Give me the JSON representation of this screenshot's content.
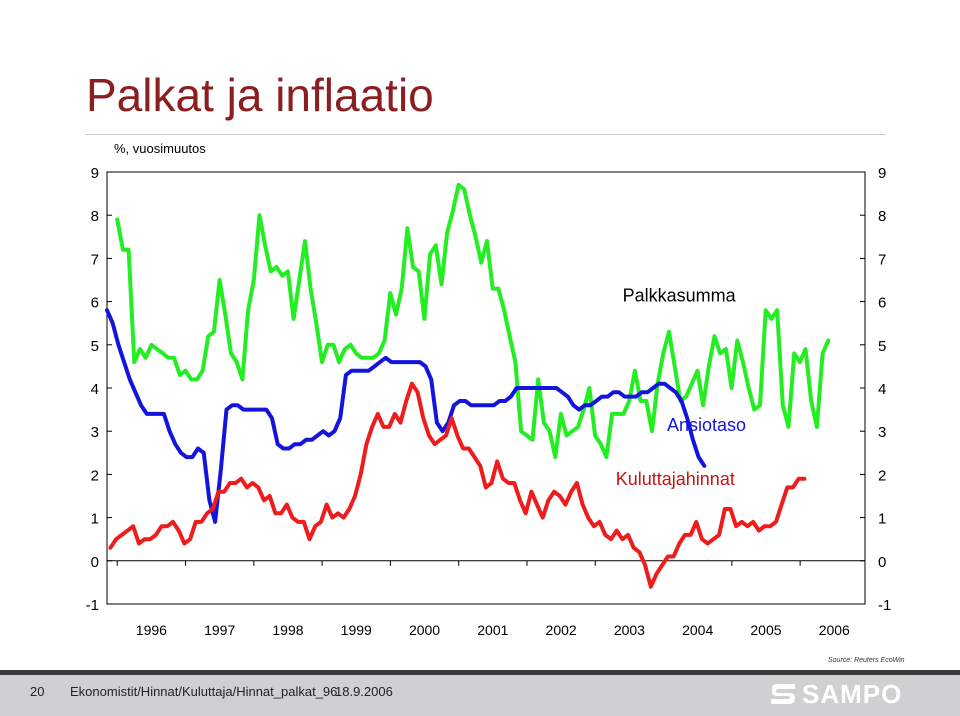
{
  "slide": {
    "title": "Palkat ja inflaatio",
    "slide_number": "20",
    "file_path": "Ekonomistit/Hinnat/Kuluttaja/Hinnat_palkat_96",
    "date": "18.9.2006",
    "source": "Source: Reuters EcoWin",
    "logo_text": "SAMPO"
  },
  "chart_data": {
    "type": "line",
    "title": "",
    "unit_label": "%, vuosimuutos",
    "ylim": [
      -1,
      9
    ],
    "xlim": [
      1995.85,
      2006.95
    ],
    "yticks": [
      -1,
      0,
      1,
      2,
      3,
      4,
      5,
      6,
      7,
      8,
      9
    ],
    "xtick_labels": [
      "1996",
      "1997",
      "1998",
      "1999",
      "2000",
      "2001",
      "2002",
      "2003",
      "2004",
      "2005",
      "2006"
    ],
    "colors": {
      "palkkasumma": "#22ee22",
      "ansiotaso": "#1414dd",
      "kuluttajahinnat": "#ee1c1c"
    },
    "annotations": [
      {
        "series": "Palkkasumma",
        "text": "Palkkasumma",
        "x": 2003.4,
        "y": 6.0
      },
      {
        "series": "Ansiotaso",
        "text": "Ansiotaso",
        "x": 2004.05,
        "y": 3.0
      },
      {
        "series": "Kuluttajahinnat",
        "text": "Kuluttajahinnat",
        "x": 2003.3,
        "y": 1.75
      }
    ],
    "series": [
      {
        "name": "Palkkasumma",
        "start": 1996.0,
        "step": 0.0833,
        "values": [
          7.9,
          7.2,
          7.2,
          4.6,
          4.9,
          4.7,
          5.0,
          4.9,
          4.8,
          4.7,
          4.7,
          4.3,
          4.4,
          4.2,
          4.2,
          4.4,
          5.2,
          5.3,
          6.5,
          5.7,
          4.8,
          4.6,
          4.2,
          5.8,
          6.5,
          8.0,
          7.3,
          6.7,
          6.8,
          6.6,
          6.7,
          5.6,
          6.5,
          7.4,
          6.3,
          5.5,
          4.6,
          5.0,
          5.0,
          4.6,
          4.9,
          5.0,
          4.8,
          4.7,
          4.7,
          4.7,
          4.8,
          5.1,
          6.2,
          5.7,
          6.3,
          7.7,
          6.8,
          6.7,
          5.6,
          7.1,
          7.3,
          6.4,
          7.6,
          8.1,
          8.7,
          8.6,
          8.0,
          7.5,
          6.9,
          7.4,
          6.3,
          6.3,
          5.8,
          5.2,
          4.6,
          3.0,
          2.9,
          2.8,
          4.2,
          3.2,
          3.0,
          2.4,
          3.4,
          2.9,
          3.0,
          3.1,
          3.5,
          4.0,
          2.9,
          2.7,
          2.4,
          3.4,
          3.4,
          3.4,
          3.7,
          4.4,
          3.7,
          3.7,
          3.0,
          4.1,
          4.8,
          5.3,
          4.5,
          3.7,
          3.8,
          4.1,
          4.4,
          3.6,
          4.5,
          5.2,
          4.8,
          4.9,
          4.0,
          5.1,
          4.6,
          4.0,
          3.5,
          3.6,
          5.8,
          5.6,
          5.8,
          3.6,
          3.1,
          4.8,
          4.6,
          4.9,
          3.7,
          3.1,
          4.8,
          5.1
        ]
      },
      {
        "name": "Ansiotaso",
        "start": 1995.85,
        "step": 0.0833,
        "values": [
          5.8,
          5.5,
          5.0,
          4.6,
          4.2,
          3.9,
          3.6,
          3.4,
          3.4,
          3.4,
          3.4,
          3.0,
          2.7,
          2.5,
          2.4,
          2.4,
          2.6,
          2.5,
          1.4,
          0.9,
          2.1,
          3.5,
          3.6,
          3.6,
          3.5,
          3.5,
          3.5,
          3.5,
          3.5,
          3.3,
          2.7,
          2.6,
          2.6,
          2.7,
          2.7,
          2.8,
          2.8,
          2.9,
          3.0,
          2.9,
          3.0,
          3.3,
          4.3,
          4.4,
          4.4,
          4.4,
          4.4,
          4.5,
          4.6,
          4.7,
          4.6,
          4.6,
          4.6,
          4.6,
          4.6,
          4.6,
          4.5,
          4.2,
          3.2,
          3.0,
          3.2,
          3.6,
          3.7,
          3.7,
          3.6,
          3.6,
          3.6,
          3.6,
          3.6,
          3.7,
          3.7,
          3.8,
          4.0,
          4.0,
          4.0,
          4.0,
          4.0,
          4.0,
          4.0,
          4.0,
          3.9,
          3.8,
          3.6,
          3.5,
          3.6,
          3.6,
          3.7,
          3.8,
          3.8,
          3.9,
          3.9,
          3.8,
          3.8,
          3.8,
          3.9,
          3.9,
          4.0,
          4.1,
          4.1,
          4.0,
          3.9,
          3.7,
          3.3,
          2.8,
          2.4,
          2.2
        ]
      },
      {
        "name": "Kuluttajahinnat",
        "start": 1995.9,
        "step": 0.0833,
        "values": [
          0.3,
          0.5,
          0.6,
          0.7,
          0.8,
          0.4,
          0.5,
          0.5,
          0.6,
          0.8,
          0.8,
          0.9,
          0.7,
          0.4,
          0.5,
          0.9,
          0.9,
          1.1,
          1.2,
          1.6,
          1.6,
          1.8,
          1.8,
          1.9,
          1.7,
          1.8,
          1.7,
          1.4,
          1.5,
          1.1,
          1.1,
          1.3,
          1.0,
          0.9,
          0.9,
          0.5,
          0.8,
          0.9,
          1.3,
          1.0,
          1.1,
          1.0,
          1.2,
          1.5,
          2.0,
          2.7,
          3.1,
          3.4,
          3.1,
          3.1,
          3.4,
          3.2,
          3.7,
          4.1,
          3.9,
          3.3,
          2.9,
          2.7,
          2.8,
          2.9,
          3.3,
          2.9,
          2.6,
          2.6,
          2.4,
          2.2,
          1.7,
          1.8,
          2.3,
          1.9,
          1.8,
          1.8,
          1.4,
          1.1,
          1.6,
          1.3,
          1.0,
          1.4,
          1.6,
          1.5,
          1.3,
          1.6,
          1.8,
          1.3,
          1.0,
          0.8,
          0.9,
          0.6,
          0.5,
          0.7,
          0.5,
          0.6,
          0.3,
          0.2,
          -0.1,
          -0.6,
          -0.3,
          -0.1,
          0.1,
          0.1,
          0.4,
          0.6,
          0.6,
          0.9,
          0.5,
          0.4,
          0.5,
          0.6,
          1.2,
          1.2,
          0.8,
          0.9,
          0.8,
          0.9,
          0.7,
          0.8,
          0.8,
          0.9,
          1.3,
          1.7,
          1.7,
          1.9,
          1.9
        ]
      }
    ]
  }
}
